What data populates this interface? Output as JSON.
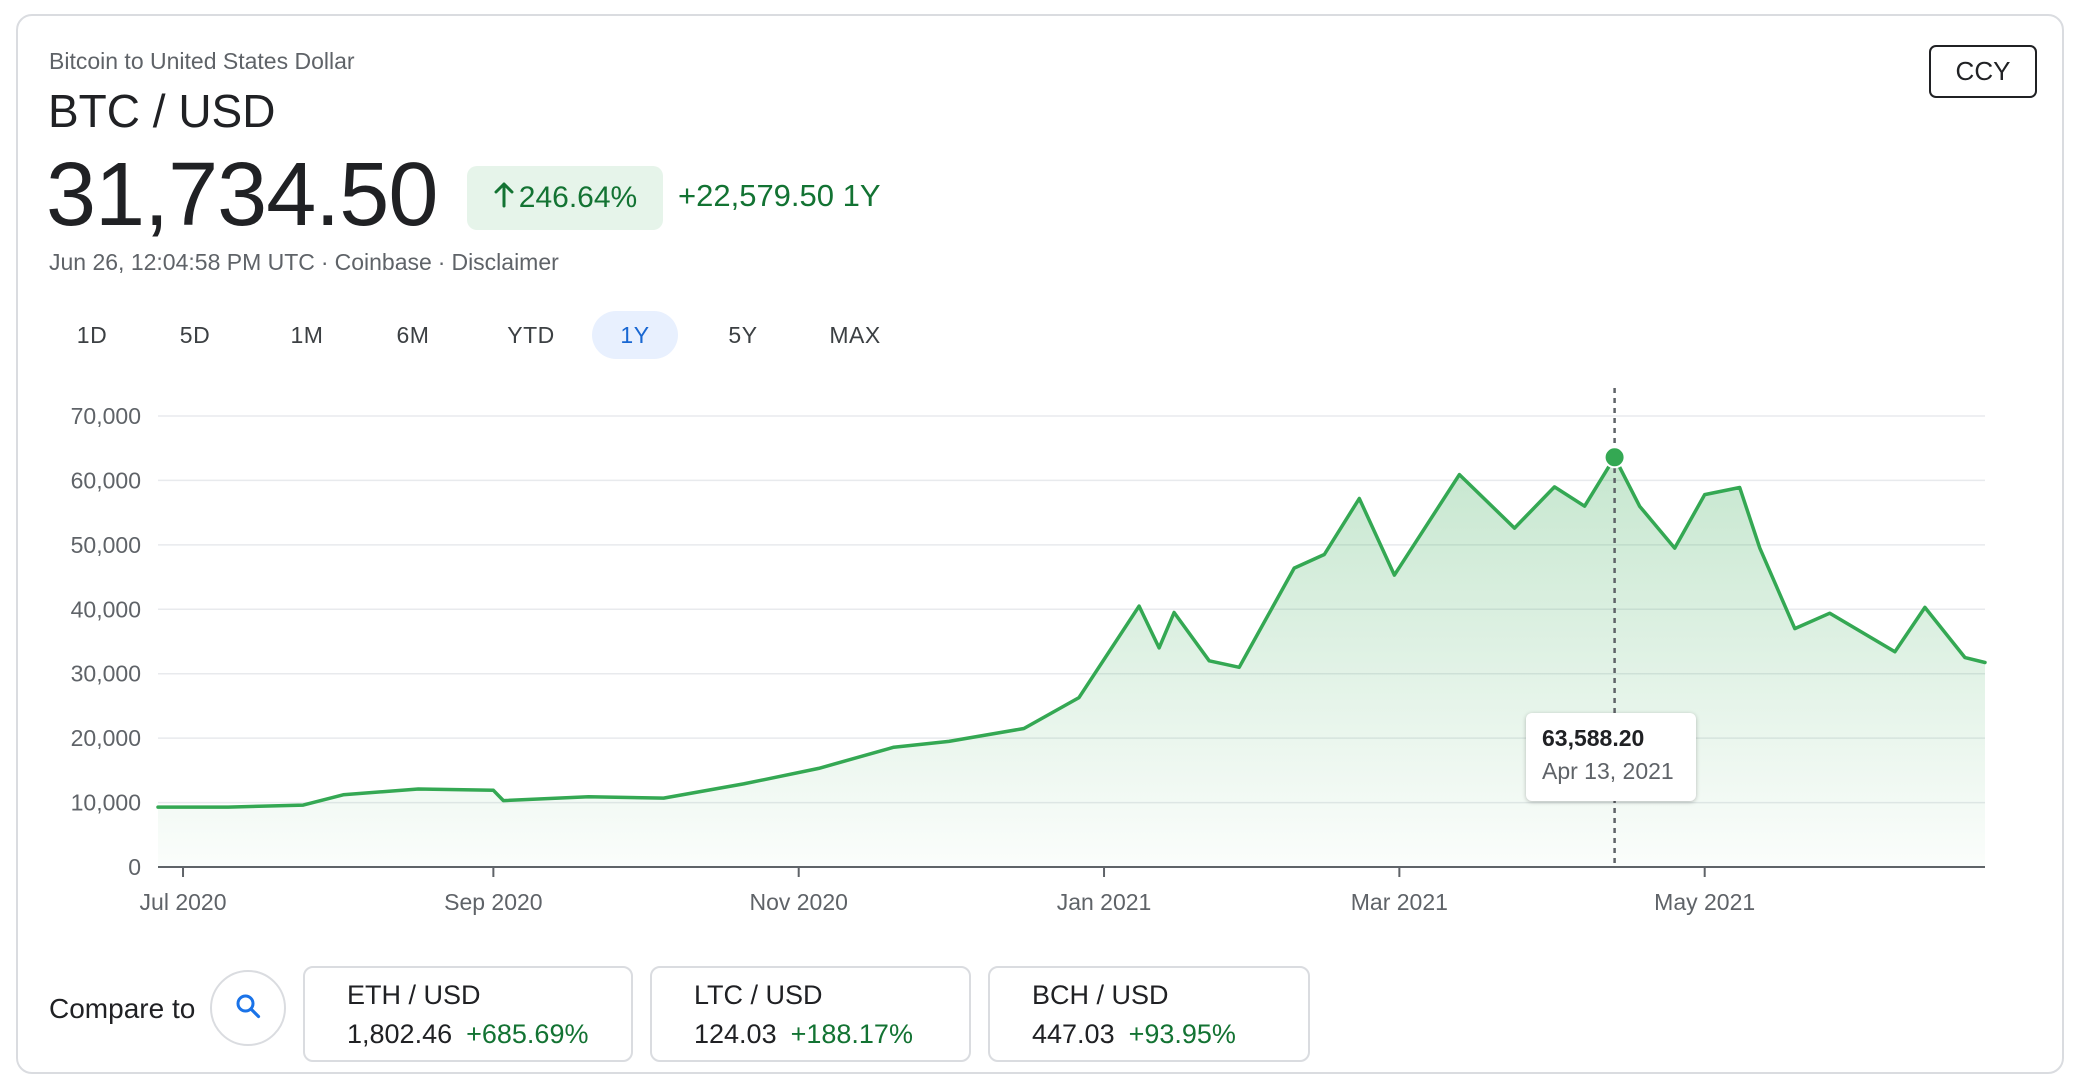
{
  "header": {
    "subtitle": "Bitcoin to United States Dollar",
    "pair": "BTC / USD",
    "price": "31,734.50",
    "change_pct": "246.64%",
    "change_abs": "+22,579.50 1Y",
    "timestamp": "Jun 26, 12:04:58 PM UTC",
    "source": "Coinbase",
    "disclaimer": "Disclaimer",
    "separator": "·",
    "up_arrow_icon": "arrow-up-icon"
  },
  "ccy_button": "CCY",
  "ranges": [
    "1D",
    "5D",
    "1M",
    "6M",
    "YTD",
    "1Y",
    "5Y",
    "MAX"
  ],
  "active_range": "1Y",
  "colors": {
    "line": "#34a853",
    "positive_text": "#137333",
    "positive_chip": "#e6f4ea",
    "active_range_bg": "#e8f0fe",
    "active_range_text": "#1967d2"
  },
  "chart_data": {
    "type": "area",
    "y_ticks": [
      "70,000",
      "60,000",
      "50,000",
      "40,000",
      "30,000",
      "20,000",
      "10,000",
      "0"
    ],
    "ylim": [
      0,
      70000
    ],
    "x_ticks": [
      "Jul 2020",
      "Sep 2020",
      "Nov 2020",
      "Jan 2021",
      "Mar 2021",
      "May 2021"
    ],
    "x_tick_dates": [
      "2020-07-01",
      "2020-09-01",
      "2020-11-01",
      "2021-01-01",
      "2021-03-01",
      "2021-05-01"
    ],
    "grid": true,
    "series": [
      {
        "points": [
          [
            "2020-06-26",
            9300
          ],
          [
            "2020-07-10",
            9300
          ],
          [
            "2020-07-25",
            9600
          ],
          [
            "2020-08-02",
            11200
          ],
          [
            "2020-08-17",
            12100
          ],
          [
            "2020-09-01",
            11900
          ],
          [
            "2020-09-03",
            10300
          ],
          [
            "2020-09-20",
            10900
          ],
          [
            "2020-10-05",
            10700
          ],
          [
            "2020-10-21",
            12900
          ],
          [
            "2020-11-05",
            15300
          ],
          [
            "2020-11-20",
            18600
          ],
          [
            "2020-12-01",
            19500
          ],
          [
            "2020-12-16",
            21500
          ],
          [
            "2020-12-27",
            26300
          ],
          [
            "2021-01-08",
            40500
          ],
          [
            "2021-01-12",
            34000
          ],
          [
            "2021-01-15",
            39500
          ],
          [
            "2021-01-22",
            32000
          ],
          [
            "2021-01-28",
            31000
          ],
          [
            "2021-02-08",
            46400
          ],
          [
            "2021-02-14",
            48500
          ],
          [
            "2021-02-21",
            57200
          ],
          [
            "2021-02-28",
            45300
          ],
          [
            "2021-03-13",
            60900
          ],
          [
            "2021-03-24",
            52600
          ],
          [
            "2021-04-01",
            59000
          ],
          [
            "2021-04-07",
            56000
          ],
          [
            "2021-04-13",
            63588.2
          ],
          [
            "2021-04-18",
            56000
          ],
          [
            "2021-04-25",
            49500
          ],
          [
            "2021-05-01",
            57800
          ],
          [
            "2021-05-08",
            58900
          ],
          [
            "2021-05-12",
            49500
          ],
          [
            "2021-05-19",
            37000
          ],
          [
            "2021-05-26",
            39400
          ],
          [
            "2021-06-08",
            33400
          ],
          [
            "2021-06-14",
            40300
          ],
          [
            "2021-06-22",
            32500
          ],
          [
            "2021-06-26",
            31734.5
          ]
        ]
      }
    ],
    "highlight": {
      "date": "Apr 13, 2021",
      "value": "63,588.20",
      "x": "2021-04-13",
      "y": 63588.2
    }
  },
  "compare": {
    "label": "Compare to",
    "search_icon": "search-icon",
    "items": [
      {
        "pair": "ETH / USD",
        "price": "1,802.46",
        "change": "+685.69%"
      },
      {
        "pair": "LTC / USD",
        "price": "124.03",
        "change": "+188.17%"
      },
      {
        "pair": "BCH / USD",
        "price": "447.03",
        "change": "+93.95%"
      }
    ]
  }
}
